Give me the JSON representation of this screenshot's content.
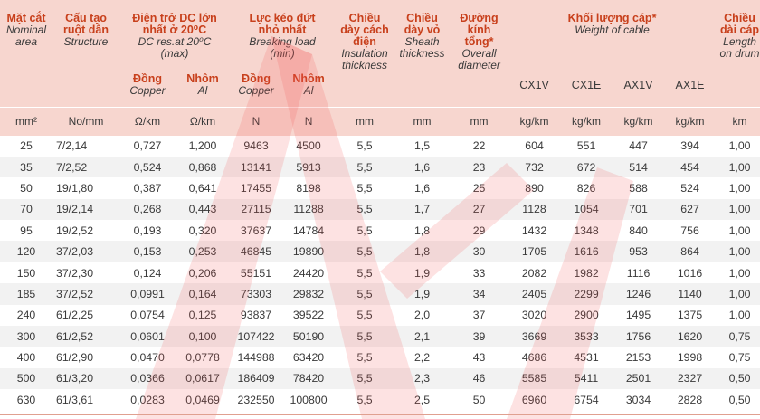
{
  "headers": {
    "area": {
      "vi": "Mặt cắt",
      "en1": "Nominal",
      "en2": "area"
    },
    "structure": {
      "vi1": "Cấu tạo",
      "vi2": "ruột dẫn",
      "en": "Structure"
    },
    "dc": {
      "vi1": "Điện trở DC lớn",
      "vi2": "nhất ở 20⁰C",
      "en1": "DC res.at 20⁰C",
      "en2": "(max)"
    },
    "load": {
      "vi1": "Lực kéo đứt",
      "vi2": "nhỏ nhất",
      "en1": "Breaking load",
      "en2": "(min)"
    },
    "insulation": {
      "vi1": "Chiều",
      "vi2": "dày cách",
      "vi3": "điện",
      "en1": "Insulation",
      "en2": "thickness"
    },
    "sheath": {
      "vi1": "Chiều",
      "vi2": "dày vỏ",
      "en1": "Sheath",
      "en2": "thickness"
    },
    "diameter": {
      "vi1": "Đường",
      "vi2": "kính",
      "vi3": "tổng*",
      "en1": "Overall",
      "en2": "diameter"
    },
    "weight": {
      "vi": "Khối lượng cáp*",
      "en": "Weight of cable"
    },
    "length": {
      "vi1": "Chiều",
      "vi2": "dài cáp",
      "en1": "Length",
      "en2": "on drum"
    },
    "copper": {
      "vi": "Đồng",
      "en": "Copper"
    },
    "aluminium": {
      "vi": "Nhôm",
      "en": "Al"
    },
    "weight_types": [
      "CX1V",
      "CX1E",
      "AX1V",
      "AX1E"
    ]
  },
  "units": [
    "mm²",
    "No/mm",
    "Ω/km",
    "Ω/km",
    "N",
    "N",
    "mm",
    "mm",
    "mm",
    "kg/km",
    "kg/km",
    "kg/km",
    "kg/km",
    "km"
  ],
  "rows": [
    [
      "25",
      "7/2,14",
      "0,727",
      "1,200",
      "9463",
      "4500",
      "5,5",
      "1,5",
      "22",
      "604",
      "551",
      "447",
      "394",
      "1,00"
    ],
    [
      "35",
      "7/2,52",
      "0,524",
      "0,868",
      "13141",
      "5913",
      "5,5",
      "1,6",
      "23",
      "732",
      "672",
      "514",
      "454",
      "1,00"
    ],
    [
      "50",
      "19/1,80",
      "0,387",
      "0,641",
      "17455",
      "8198",
      "5,5",
      "1,6",
      "25",
      "890",
      "826",
      "588",
      "524",
      "1,00"
    ],
    [
      "70",
      "19/2,14",
      "0,268",
      "0,443",
      "27115",
      "11288",
      "5,5",
      "1,7",
      "27",
      "1128",
      "1054",
      "701",
      "627",
      "1,00"
    ],
    [
      "95",
      "19/2,52",
      "0,193",
      "0,320",
      "37637",
      "14784",
      "5,5",
      "1,8",
      "29",
      "1432",
      "1348",
      "840",
      "756",
      "1,00"
    ],
    [
      "120",
      "37/2,03",
      "0,153",
      "0,253",
      "46845",
      "19890",
      "5,5",
      "1,8",
      "30",
      "1705",
      "1616",
      "953",
      "864",
      "1,00"
    ],
    [
      "150",
      "37/2,30",
      "0,124",
      "0,206",
      "55151",
      "24420",
      "5,5",
      "1,9",
      "33",
      "2082",
      "1982",
      "1116",
      "1016",
      "1,00"
    ],
    [
      "185",
      "37/2,52",
      "0,0991",
      "0,164",
      "73303",
      "29832",
      "5,5",
      "1,9",
      "34",
      "2405",
      "2299",
      "1246",
      "1140",
      "1,00"
    ],
    [
      "240",
      "61/2,25",
      "0,0754",
      "0,125",
      "93837",
      "39522",
      "5,5",
      "2,0",
      "37",
      "3020",
      "2900",
      "1495",
      "1375",
      "1,00"
    ],
    [
      "300",
      "61/2,52",
      "0,0601",
      "0,100",
      "107422",
      "50190",
      "5,5",
      "2,1",
      "39",
      "3669",
      "3533",
      "1756",
      "1620",
      "0,75"
    ],
    [
      "400",
      "61/2,90",
      "0,0470",
      "0,0778",
      "144988",
      "63420",
      "5,5",
      "2,2",
      "43",
      "4686",
      "4531",
      "2153",
      "1998",
      "0,75"
    ],
    [
      "500",
      "61/3,20",
      "0,0366",
      "0,0617",
      "186409",
      "78420",
      "5,5",
      "2,3",
      "46",
      "5585",
      "5411",
      "2501",
      "2327",
      "0,50"
    ],
    [
      "630",
      "61/3,61",
      "0,0283",
      "0,0469",
      "232550",
      "100800",
      "5,5",
      "2,5",
      "50",
      "6960",
      "6754",
      "3034",
      "2828",
      "0,50"
    ]
  ],
  "colors": {
    "header_bg": "#f7d6cf",
    "header_text": "#c8401c",
    "watermark": "#f04848",
    "stripe": "#f2f2f2"
  }
}
